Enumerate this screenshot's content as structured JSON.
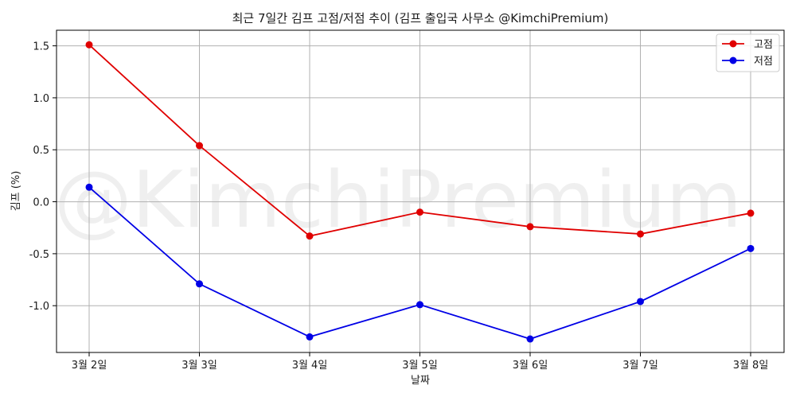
{
  "chart_data": {
    "type": "line",
    "title": "최근 7일간 김프 고점/저점 추이 (김프 출입국 사무소 @KimchiPremium)",
    "xlabel": "날짜",
    "ylabel": "김프 (%)",
    "categories": [
      "3월 2일",
      "3월 3일",
      "3월 4일",
      "3월 5일",
      "3월 6일",
      "3월 7일",
      "3월 8일"
    ],
    "ylim": [
      -1.45,
      1.65
    ],
    "yticks": [
      1.5,
      1.0,
      0.5,
      0.0,
      -0.5,
      -1.0
    ],
    "ytick_labels": [
      "1.5",
      "1.0",
      "0.5",
      "0.0",
      "-0.5",
      "-1.0"
    ],
    "grid": true,
    "legend_position": "top-right",
    "series": [
      {
        "name": "고점",
        "color": "#e00000",
        "values": [
          1.51,
          0.54,
          -0.33,
          -0.1,
          -0.24,
          -0.31,
          -0.11
        ]
      },
      {
        "name": "저점",
        "color": "#0000e6",
        "values": [
          0.14,
          -0.79,
          -1.3,
          -0.99,
          -1.32,
          -0.96,
          -0.45
        ]
      }
    ],
    "watermark": "@KimchiPremium"
  }
}
